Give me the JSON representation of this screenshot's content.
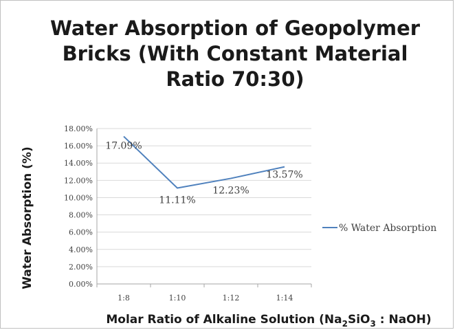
{
  "chart_data": {
    "type": "line",
    "title_lines": [
      "Water Absorption of Geopolymer",
      "Bricks (With Constant Material",
      "Ratio 70:30)"
    ],
    "xlabel": {
      "prefix": "Molar Ratio of Alkaline Solution (Na",
      "sub1": "2",
      "mid": "SiO",
      "sub2": "3",
      "suffix": " : NaOH)"
    },
    "ylabel": "Water Absorption (%)",
    "categories": [
      "1:8",
      "1:10",
      "1:12",
      "1:14"
    ],
    "ylim": [
      0,
      18
    ],
    "yticks": [
      "0.00%",
      "2.00%",
      "4.00%",
      "6.00%",
      "8.00%",
      "10.00%",
      "12.00%",
      "14.00%",
      "16.00%",
      "18.00%"
    ],
    "series": [
      {
        "name": "% Water Absorption",
        "values": [
          17.09,
          11.11,
          12.23,
          13.57
        ],
        "labels": [
          "17.09%",
          "11.11%",
          "12.23%",
          "13.57%"
        ],
        "color": "#4f81bd"
      }
    ],
    "grid": true,
    "legend_position": "right"
  }
}
